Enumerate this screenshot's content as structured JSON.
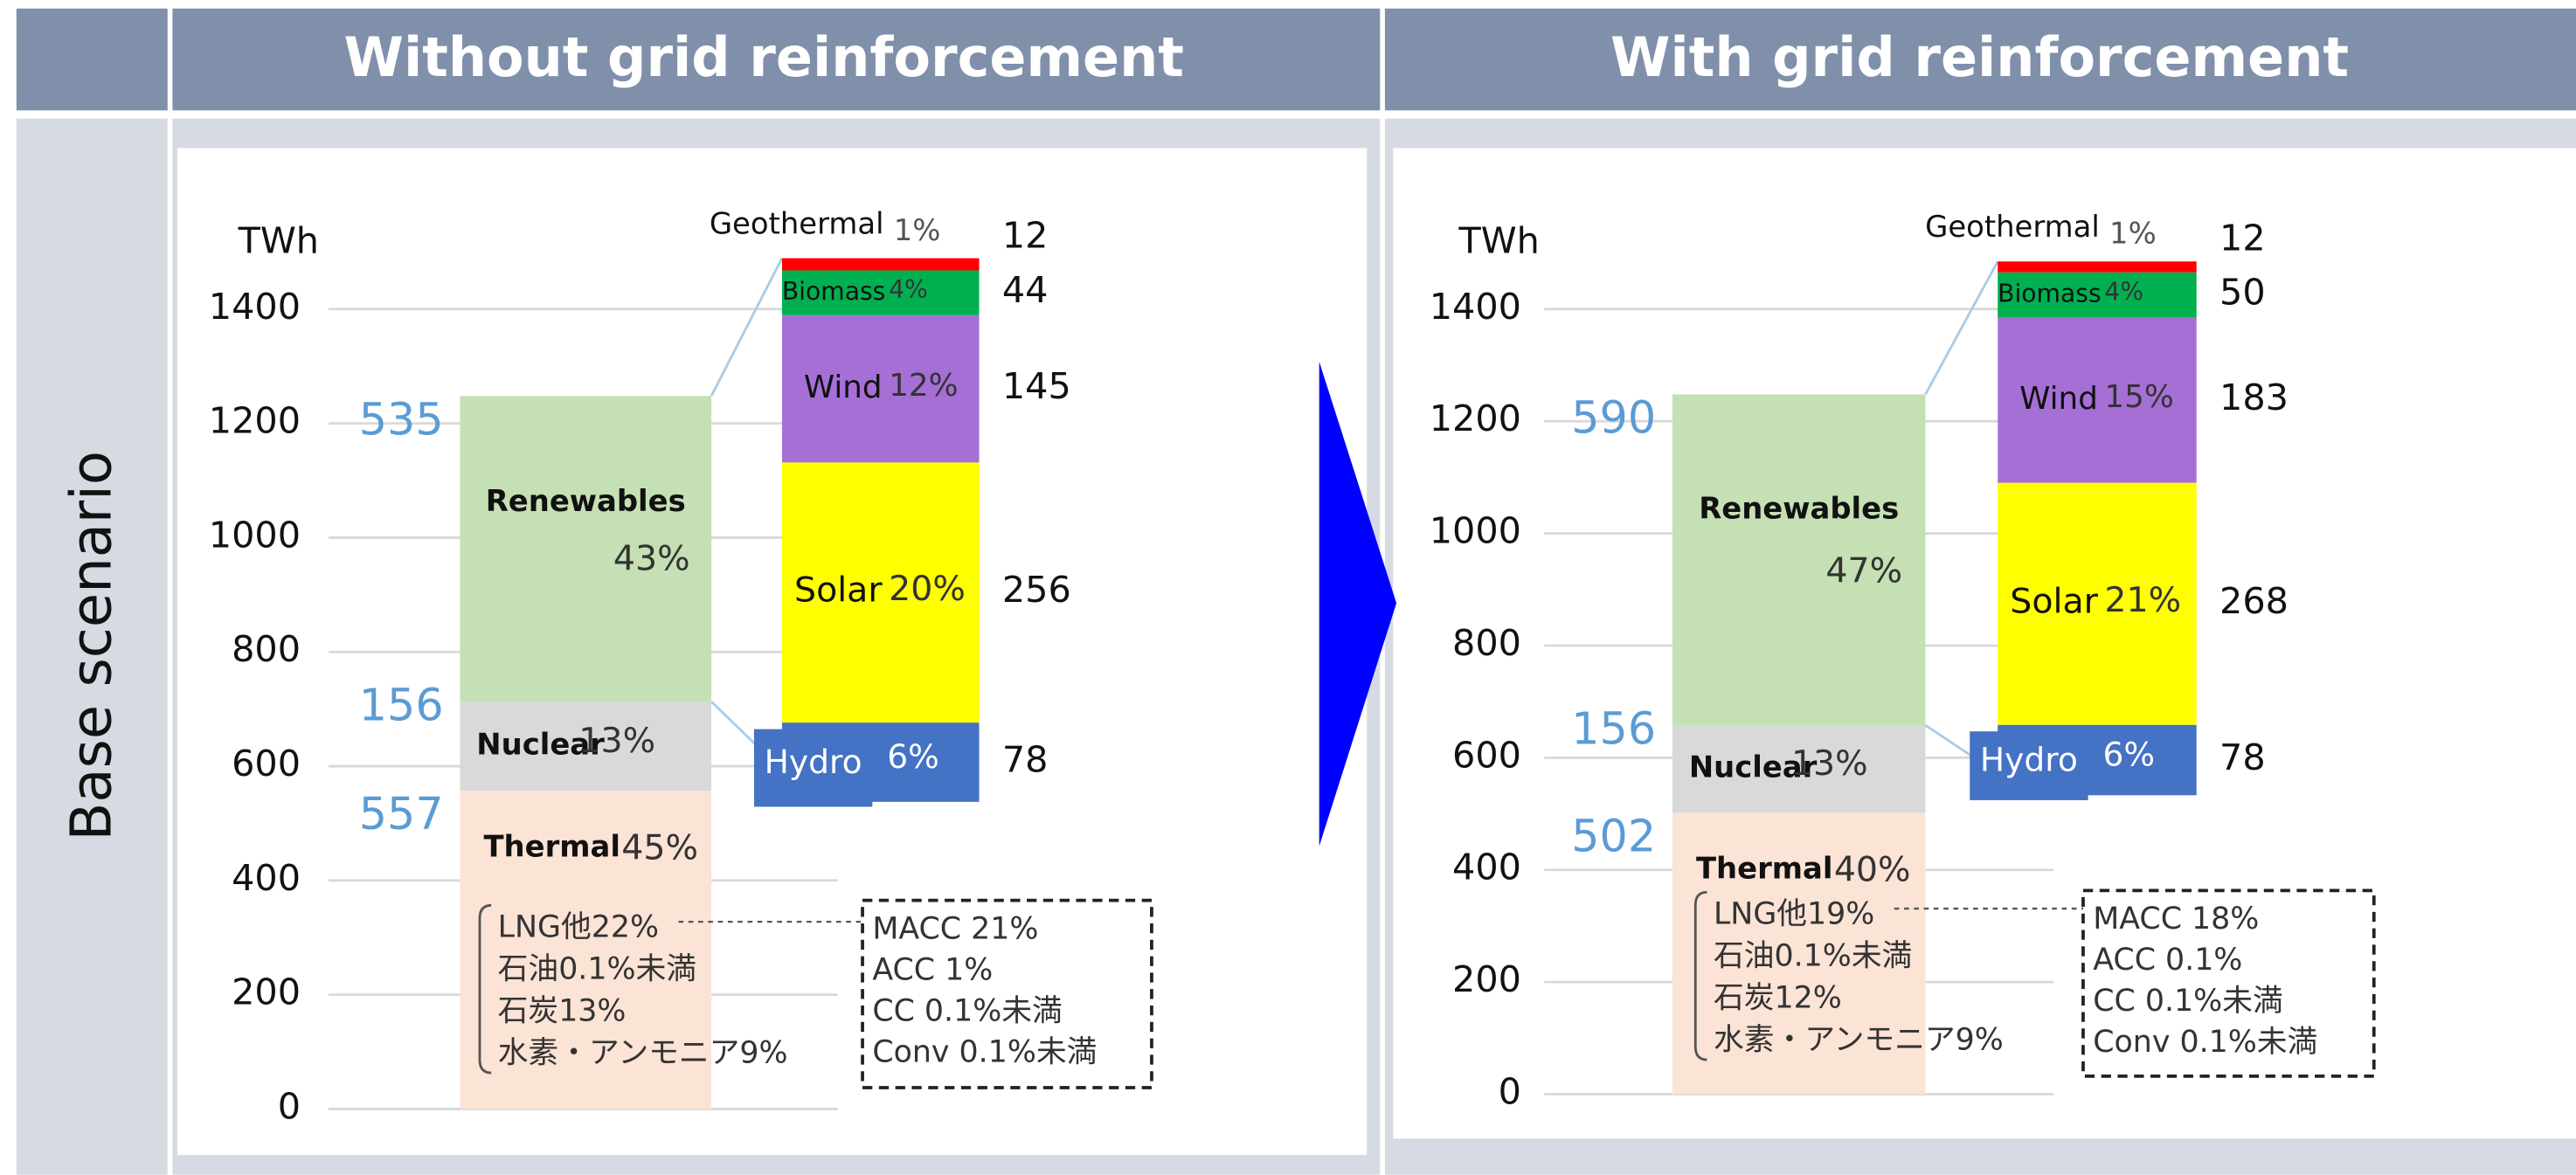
{
  "header": {
    "left": "Without grid reinforcement",
    "right": "With grid reinforcement"
  },
  "row_label": "Base scenario",
  "chart_data": [
    {
      "type": "stacked_bar",
      "y_label": "TWh",
      "ylim": [
        0,
        1400
      ],
      "yticks": [
        0,
        200,
        400,
        600,
        800,
        1000,
        1200,
        1400
      ],
      "main": [
        {
          "name": "Thermal",
          "value": 557,
          "share": "45%",
          "color": "#fbe3d5"
        },
        {
          "name": "Nuclear",
          "value": 156,
          "share": "13%",
          "color": "#d9d9d9"
        },
        {
          "name": "Renewables",
          "value": 535,
          "share": "43%",
          "color": "#c5e0b4"
        }
      ],
      "renewables": [
        {
          "name": "Hydro",
          "value": 78,
          "share": "6%",
          "color": "#4472c4"
        },
        {
          "name": "Solar",
          "value": 256,
          "share": "20%",
          "color": "#ffff00"
        },
        {
          "name": "Wind",
          "value": 145,
          "share": "12%",
          "color": "#a66fd6"
        },
        {
          "name": "Biomass",
          "value": 44,
          "share": "4%",
          "color": "#00b050"
        },
        {
          "name": "Geothermal",
          "value": 12,
          "share": "1%",
          "color": "#ff0000"
        }
      ],
      "thermal_breakdown": [
        "LNG他22%",
        "石油0.1%未満",
        "石炭13%",
        "水素・アンモニア9%"
      ],
      "ccs_breakdown": [
        "MACC 21%",
        "ACC 1%",
        "CC 0.1%未満",
        "Conv 0.1%未満"
      ]
    },
    {
      "type": "stacked_bar",
      "y_label": "TWh",
      "ylim": [
        0,
        1400
      ],
      "yticks": [
        0,
        200,
        400,
        600,
        800,
        1000,
        1200,
        1400
      ],
      "main": [
        {
          "name": "Thermal",
          "value": 502,
          "share": "40%",
          "color": "#fbe3d5"
        },
        {
          "name": "Nuclear",
          "value": 156,
          "share": "13%",
          "color": "#d9d9d9"
        },
        {
          "name": "Renewables",
          "value": 590,
          "share": "47%",
          "color": "#c5e0b4"
        }
      ],
      "renewables": [
        {
          "name": "Hydro",
          "value": 78,
          "share": "6%",
          "color": "#4472c4"
        },
        {
          "name": "Solar",
          "value": 268,
          "share": "21%",
          "color": "#ffff00"
        },
        {
          "name": "Wind",
          "value": 183,
          "share": "15%",
          "color": "#a66fd6"
        },
        {
          "name": "Biomass",
          "value": 50,
          "share": "4%",
          "color": "#00b050"
        },
        {
          "name": "Geothermal",
          "value": 12,
          "share": "1%",
          "color": "#ff0000"
        }
      ],
      "thermal_breakdown": [
        "LNG他19%",
        "石油0.1%未満",
        "石炭12%",
        "水素・アンモニア9%"
      ],
      "ccs_breakdown": [
        "MACC 18%",
        "ACC 0.1%",
        "CC 0.1%未満",
        "Conv 0.1%未満"
      ]
    }
  ]
}
